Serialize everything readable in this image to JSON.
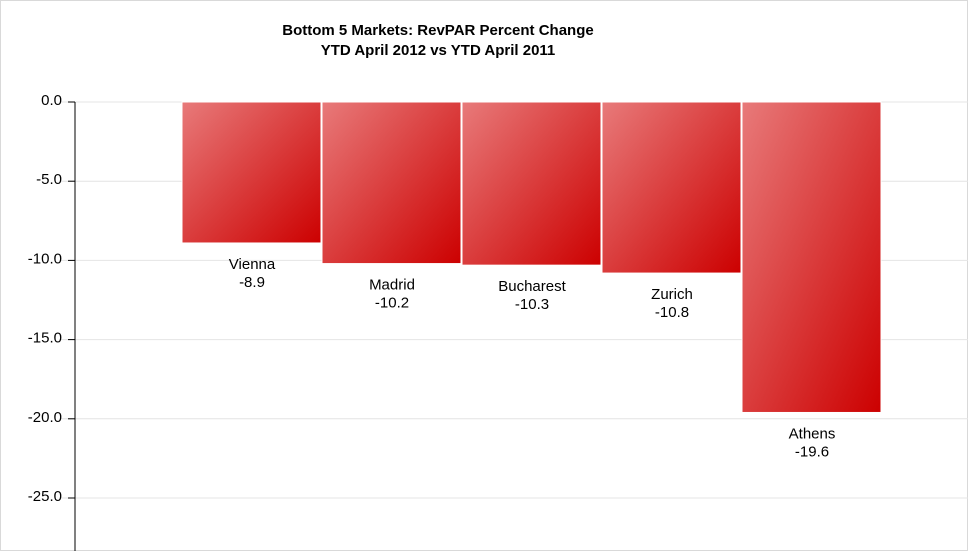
{
  "chart_data": {
    "type": "bar",
    "title": "Bottom 5 Markets: RevPAR Percent Change",
    "subtitle": "YTD April 2012 vs YTD April 2011",
    "categories": [
      "Vienna",
      "Madrid",
      "Bucharest",
      "Zurich",
      "Athens"
    ],
    "values": [
      -8.9,
      -10.2,
      -10.3,
      -10.8,
      -19.6
    ],
    "color": "#cc0000",
    "ylim": [
      -25,
      0
    ],
    "yticks": [
      {
        "value": 0,
        "label": "0.0"
      },
      {
        "value": -5,
        "label": "-5.0"
      },
      {
        "value": -10,
        "label": "-10.0"
      },
      {
        "value": -15,
        "label": "-15.0"
      },
      {
        "value": -20,
        "label": "-20.0"
      },
      {
        "value": -25,
        "label": "-25.0"
      }
    ],
    "grid": true
  }
}
